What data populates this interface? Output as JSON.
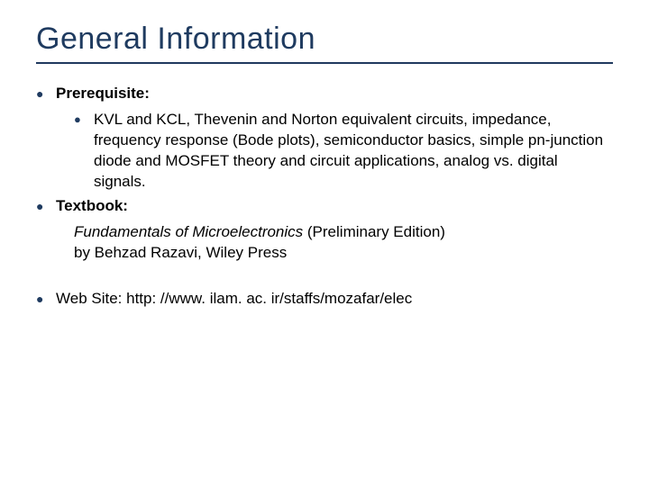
{
  "colors": {
    "title": "#1f3b60",
    "underline": "#203a5f",
    "bullet": "#1f3b60",
    "body_text": "#000000"
  },
  "title": "General Information",
  "items": {
    "prerequisite": {
      "label": "Prerequisite:",
      "detail": "KVL and KCL, Thevenin and Norton equivalent circuits, impedance, frequency response (Bode plots), semiconductor basics, simple pn-junction diode and MOSFET theory and circuit applications, analog vs. digital signals."
    },
    "textbook": {
      "label": "Textbook:",
      "title_italic": "Fundamentals of Microelectronics",
      "title_rest": " (Preliminary Edition)",
      "author_line": "by Behzad Razavi, Wiley Press"
    },
    "website": {
      "label": "Web Site: ",
      "url": "http: //www. ilam. ac. ir/staffs/mozafar/elec"
    }
  }
}
